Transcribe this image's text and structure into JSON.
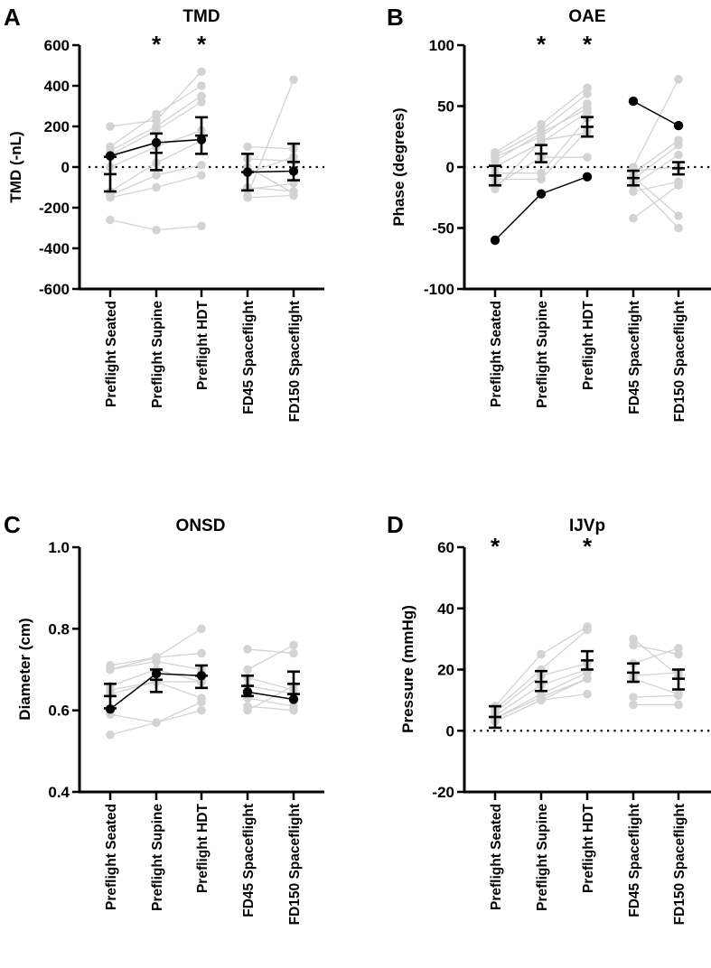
{
  "chart_data": [
    {
      "type": "scatter",
      "panel_letter": "A",
      "title": "TMD",
      "ylabel": "TMD (-nL)",
      "ylim": [
        -600,
        600
      ],
      "yticks": [
        600,
        400,
        200,
        0,
        -200,
        -400,
        -600
      ],
      "categories": [
        "Preflight Seated",
        "Preflight Supine",
        "Preflight HDT",
        "FD45 Spaceflight",
        "FD150 Spaceflight"
      ],
      "significant": [
        1,
        2
      ],
      "asterisk": "*",
      "reference_line": 0,
      "pre_subjects": [
        [
          200,
          230,
          470
        ],
        [
          100,
          260,
          400
        ],
        [
          80,
          200,
          350
        ],
        [
          60,
          180,
          320
        ],
        [
          0,
          100,
          180
        ],
        [
          -120,
          20,
          130
        ],
        [
          -140,
          -40,
          10
        ],
        [
          -150,
          -100,
          -40
        ],
        [
          -260,
          -310,
          -290
        ],
        [
          50,
          120,
          140
        ]
      ],
      "flight_subjects": [
        [
          100,
          90
        ],
        [
          40,
          30
        ],
        [
          0,
          -130
        ],
        [
          -100,
          -120
        ],
        [
          -110,
          -80
        ],
        [
          -140,
          430
        ],
        [
          -150,
          -140
        ],
        [
          -30,
          50
        ]
      ],
      "highlight_pre": [
        55,
        120,
        135
      ],
      "highlight_flight": [
        -25,
        -20
      ],
      "means": [
        -35,
        70,
        155,
        -25,
        25
      ],
      "error_low": [
        -120,
        -15,
        65,
        -115,
        -65
      ],
      "error_high": [
        50,
        165,
        245,
        65,
        115
      ]
    },
    {
      "type": "scatter",
      "panel_letter": "B",
      "title": "OAE",
      "ylabel": "Phase (degrees)",
      "ylim": [
        -100,
        100
      ],
      "yticks": [
        100,
        50,
        0,
        -50,
        -100
      ],
      "categories": [
        "Preflight Seated",
        "Preflight Supine",
        "Preflight HDT",
        "FD45 Spaceflight",
        "FD150 Spaceflight"
      ],
      "significant": [
        1,
        2
      ],
      "asterisk": "*",
      "reference_line": 0,
      "pre_subjects": [
        [
          12,
          35,
          65
        ],
        [
          10,
          30,
          60
        ],
        [
          8,
          25,
          52
        ],
        [
          5,
          28,
          48
        ],
        [
          0,
          20,
          45
        ],
        [
          -5,
          -5,
          40
        ],
        [
          -10,
          -10,
          30
        ],
        [
          -15,
          8,
          8
        ],
        [
          -18,
          22,
          28
        ]
      ],
      "flight_subjects": [
        [
          0,
          72
        ],
        [
          -5,
          22
        ],
        [
          -10,
          18
        ],
        [
          -15,
          10
        ],
        [
          -20,
          -12
        ],
        [
          -42,
          -15
        ],
        [
          -8,
          -40
        ],
        [
          -12,
          -50
        ],
        [
          -3,
          0
        ]
      ],
      "highlight_pre": [
        -60,
        -22,
        -8
      ],
      "highlight_flight": [
        54,
        34
      ],
      "means": [
        -7,
        11,
        33,
        -9,
        -1
      ],
      "error_low": [
        -15,
        4,
        25,
        -15,
        -6
      ],
      "error_high": [
        1,
        18,
        41,
        -3,
        4
      ]
    },
    {
      "type": "scatter",
      "panel_letter": "C",
      "title": "ONSD",
      "ylabel": "Diameter (cm)",
      "ylim": [
        0.4,
        1.0
      ],
      "yticks": [
        "1.0",
        "0.8",
        "0.6",
        "0.4"
      ],
      "categories": [
        "Preflight Seated",
        "Preflight Supine",
        "Preflight HDT",
        "FD45 Spaceflight",
        "FD150 Spaceflight"
      ],
      "significant": [],
      "asterisk": "",
      "reference_line": null,
      "pre_subjects": [
        [
          0.71,
          0.73,
          0.8
        ],
        [
          0.7,
          0.73,
          0.74
        ],
        [
          0.7,
          0.72,
          0.7
        ],
        [
          0.66,
          0.7,
          0.67
        ],
        [
          0.65,
          0.67,
          0.67
        ],
        [
          0.64,
          0.67,
          0.63
        ],
        [
          0.59,
          0.57,
          0.62
        ],
        [
          0.54,
          0.57,
          0.6
        ]
      ],
      "flight_subjects": [
        [
          0.75,
          0.74
        ],
        [
          0.7,
          0.76
        ],
        [
          0.68,
          0.65
        ],
        [
          0.66,
          0.64
        ],
        [
          0.63,
          0.61
        ],
        [
          0.61,
          0.6
        ],
        [
          0.6,
          0.66
        ]
      ],
      "highlight_pre": [
        0.603,
        0.69,
        0.685
      ],
      "highlight_flight": [
        0.645,
        0.627
      ],
      "means": [
        0.635,
        0.675,
        0.685,
        0.66,
        0.665
      ],
      "error_low": [
        0.605,
        0.645,
        0.655,
        0.635,
        0.64
      ],
      "error_high": [
        0.665,
        0.7,
        0.71,
        0.685,
        0.695
      ]
    },
    {
      "type": "scatter",
      "panel_letter": "D",
      "title": "IJVp",
      "ylabel": "Pressure (mmHg)",
      "ylim": [
        -20,
        60
      ],
      "yticks": [
        60,
        40,
        20,
        0,
        -20
      ],
      "categories": [
        "Preflight Seated",
        "Preflight Supine",
        "Preflight HDT",
        "FD45 Spaceflight",
        "FD150 Spaceflight"
      ],
      "significant": [
        0,
        2
      ],
      "asterisk": "*",
      "reference_line": 0,
      "pre_subjects": [
        [
          8,
          25,
          34
        ],
        [
          7,
          20,
          33
        ],
        [
          6,
          18,
          22
        ],
        [
          5,
          15,
          20
        ],
        [
          4,
          12,
          19
        ],
        [
          4,
          11,
          17
        ],
        [
          3,
          10,
          17
        ],
        [
          3,
          10,
          12
        ]
      ],
      "flight_subjects": [
        [
          30,
          18
        ],
        [
          28,
          25
        ],
        [
          22,
          27
        ],
        [
          18,
          19
        ],
        [
          17,
          12
        ],
        [
          11,
          11.5
        ],
        [
          8.5,
          8.5
        ]
      ],
      "highlight_pre": null,
      "highlight_flight": null,
      "means": [
        4.5,
        16,
        23,
        19,
        17
      ],
      "error_low": [
        1,
        13,
        20,
        16,
        13.5
      ],
      "error_high": [
        8,
        19.5,
        26,
        22,
        20
      ]
    }
  ]
}
